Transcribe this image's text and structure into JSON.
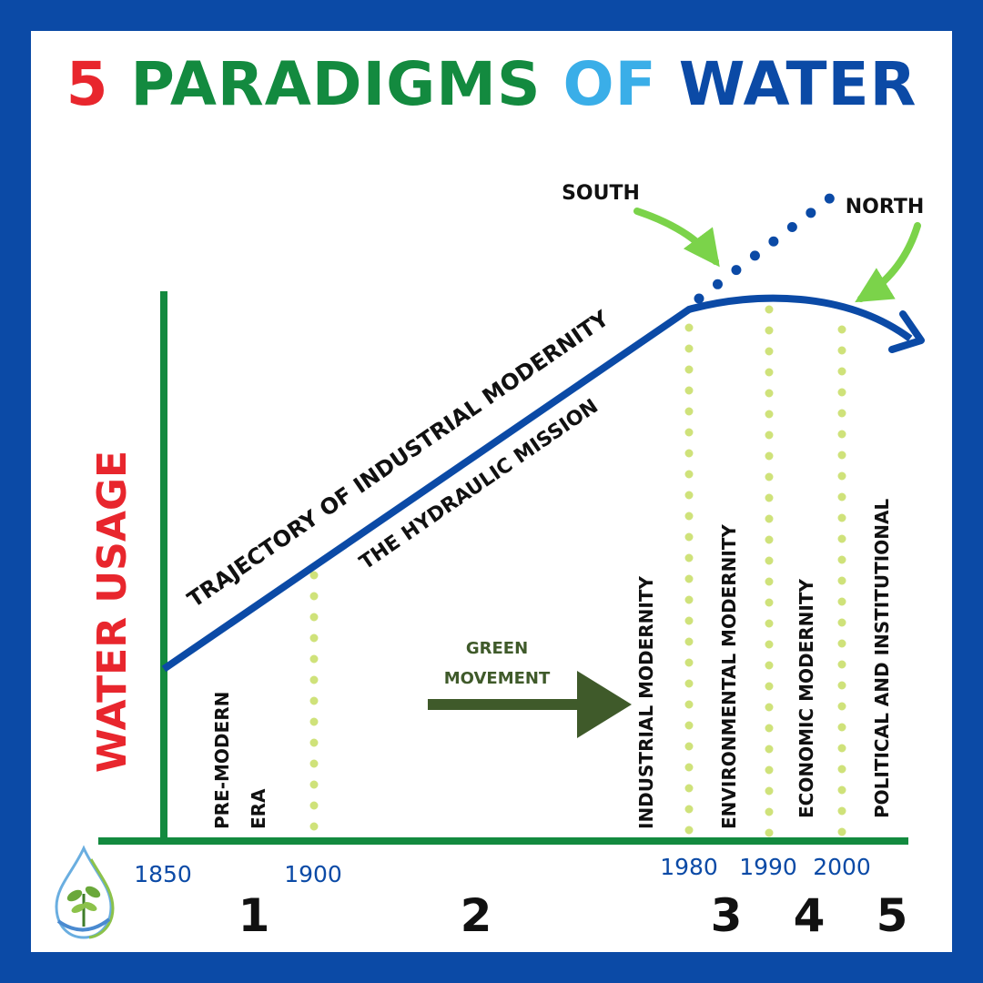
{
  "title": {
    "number": "5",
    "paradigms": "PARADIGMS",
    "of": "OF",
    "water": "WATER"
  },
  "y_axis_label": "WATER USAGE",
  "trajectory_label": "TRAJECTORY OF INDUSTRIAL MODERNITY",
  "mission_label": "THE HYDRAULIC MISSION",
  "south_label": "SOUTH",
  "north_label": "NORTH",
  "green_movement": [
    "GREEN",
    "MOVEMENT"
  ],
  "era_labels": {
    "premodern": [
      "PRE-MODERN",
      "ERA"
    ],
    "industrial": "INDUSTRIAL MODERNITY",
    "environmental": "ENVIRONMENTAL MODERNITY",
    "economic": "ECONOMIC MODERNITY",
    "political": "POLITICAL AND INSTITUTIONAL"
  },
  "years": [
    "1850",
    "1900",
    "1980",
    "1990",
    "2000"
  ],
  "paradigm_numbers": [
    "1",
    "2",
    "3",
    "4",
    "5"
  ],
  "colors": {
    "frame": "#0b4aa6",
    "axis": "#138a3f",
    "curve": "#0b4aa6",
    "dotted_line": "#cfe27a",
    "arrow_green": "#7bd34a",
    "movement_arrow": "#3f5a2a",
    "y_label": "#e8262d",
    "year": "#0b4aa6"
  },
  "icons": [
    "water-drop-plant-logo"
  ]
}
